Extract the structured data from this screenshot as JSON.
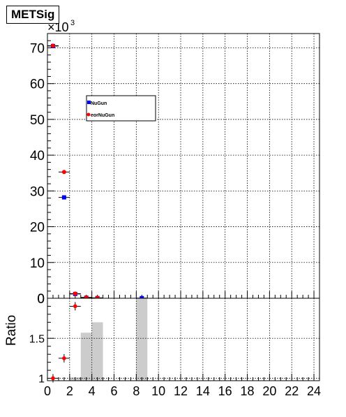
{
  "chart_data": [
    {
      "type": "scatter",
      "title": "METSig",
      "xlabel": "",
      "ylabel": "",
      "xlim": [
        0,
        24.5
      ],
      "ylim": [
        0,
        74000
      ],
      "x_ticks": [
        "0",
        "2",
        "4",
        "6",
        "8",
        "10",
        "12",
        "14",
        "16",
        "18",
        "20",
        "22",
        "24"
      ],
      "y_ticks": [
        "0",
        "10",
        "20",
        "30",
        "40",
        "50",
        "60",
        "70"
      ],
      "y_multiplier_base": "×10",
      "y_multiplier_exp": "3",
      "grid": true,
      "legend": {
        "position": "upper-left-inside",
        "entries": [
          "NuGun",
          "eorNuGun"
        ]
      },
      "series": [
        {
          "name": "NuGun",
          "color": "#0000ff",
          "marker": "square",
          "x": [
            0.5,
            1.5,
            2.5,
            3.5,
            4.5,
            8.5
          ],
          "y": [
            70500,
            28200,
            1200,
            150,
            60,
            40
          ]
        },
        {
          "name": "eorNuGun",
          "color": "#ff0000",
          "marker": "circle",
          "x": [
            0.5,
            1.5,
            2.5,
            3.5,
            4.5
          ],
          "y": [
            70600,
            35300,
            1300,
            250,
            110
          ]
        }
      ]
    },
    {
      "type": "bar",
      "title": "",
      "xlabel": "",
      "ylabel": "Ratio",
      "xlim": [
        0,
        24.5
      ],
      "ylim": [
        0.97,
        2.0
      ],
      "x_ticks": [
        "0",
        "2",
        "4",
        "6",
        "8",
        "10",
        "12",
        "14",
        "16",
        "18",
        "20",
        "22",
        "24"
      ],
      "y_ticks": [
        "1",
        "1.5"
      ],
      "grid": true,
      "bins": [
        {
          "x0": 2,
          "x1": 3,
          "y": 1.01
        },
        {
          "x0": 3,
          "x1": 4,
          "y": 1.57
        },
        {
          "x0": 4,
          "x1": 5,
          "y": 1.7
        },
        {
          "x0": 8,
          "x1": 9,
          "y": 2.0
        }
      ],
      "points": {
        "x": [
          0.5,
          1.5,
          2.5
        ],
        "y": [
          1.0,
          1.25,
          1.9
        ],
        "color": "#ff0000"
      }
    }
  ]
}
